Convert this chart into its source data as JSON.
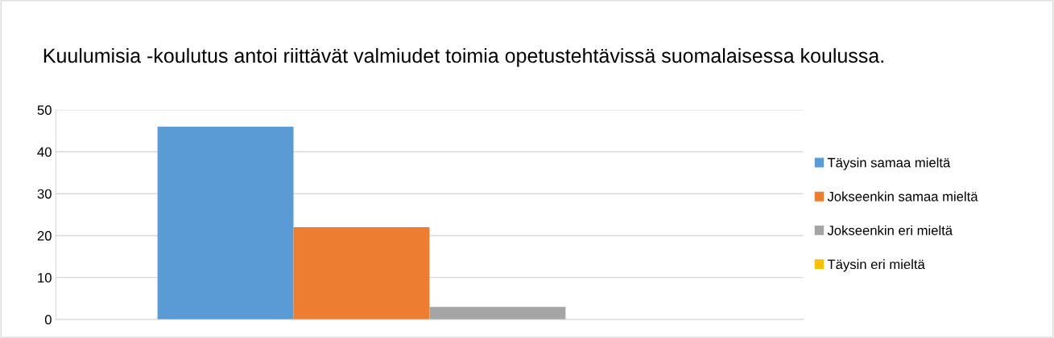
{
  "chart_data": {
    "type": "bar",
    "title": "Kuulumisia -koulutus antoi riittävät valmiudet toimia opetustehtävissä suomalaisessa koulussa.",
    "categories": [
      null
    ],
    "series": [
      {
        "name": "Täysin samaa mieltä",
        "color": "#5b9bd5",
        "values": [
          46
        ]
      },
      {
        "name": "Jokseenkin samaa mieltä",
        "color": "#ed7d31",
        "values": [
          22
        ]
      },
      {
        "name": "Jokseenkin eri mieltä",
        "color": "#a5a5a5",
        "values": [
          3
        ]
      },
      {
        "name": "Täysin eri mieltä",
        "color": "#ffc000",
        "values": [
          0
        ]
      }
    ],
    "ylim": [
      0,
      50
    ],
    "yticks": [
      0,
      10,
      20,
      30,
      40,
      50
    ],
    "grid": "y",
    "legend": "right"
  }
}
